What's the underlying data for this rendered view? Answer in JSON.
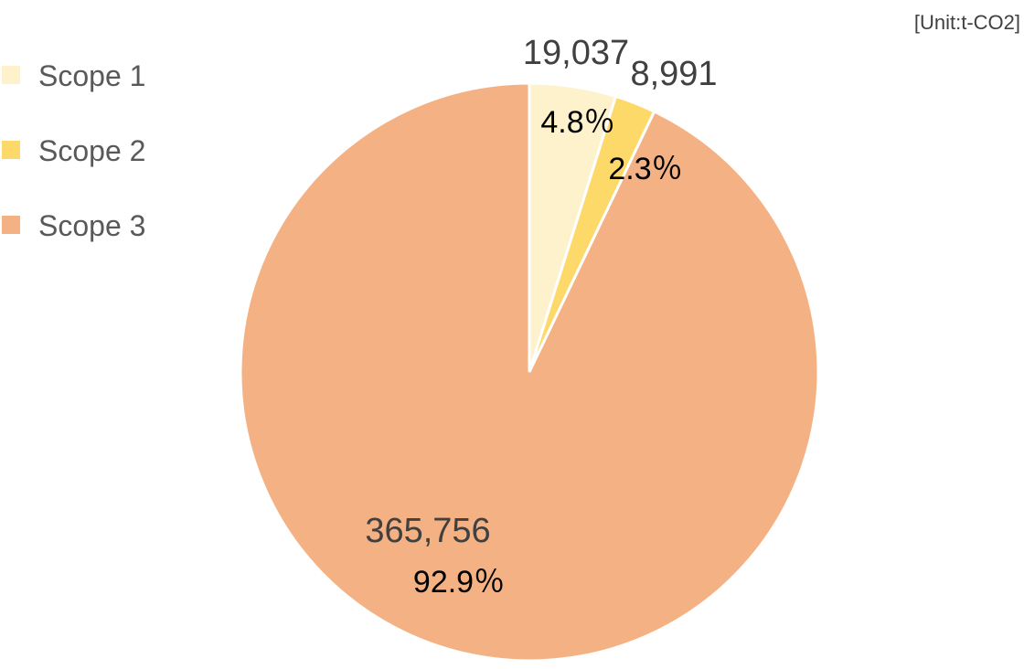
{
  "chart_data": {
    "type": "pie",
    "unit_label": "[Unit:t-CO2]",
    "categories": [
      "Scope 1",
      "Scope 2",
      "Scope 3"
    ],
    "values": [
      19037,
      8991,
      365756
    ],
    "value_labels": [
      "19,037",
      "8,991",
      "365,756"
    ],
    "percent_labels": [
      "4.8％",
      "2.3％",
      "92.9％"
    ],
    "colors": [
      "#FEF2CC",
      "#FDD96A",
      "#F4B183"
    ],
    "start_angle_deg": 0,
    "direction": "clockwise",
    "legend_position": "left"
  }
}
